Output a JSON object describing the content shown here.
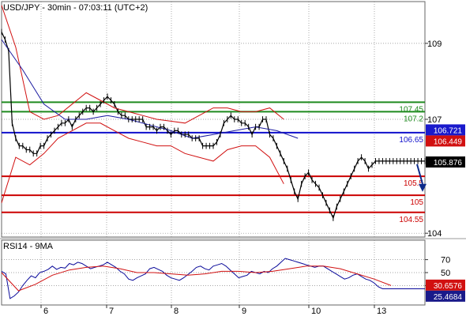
{
  "header": {
    "title": "USD/JPY - 30min - 07:03:11 (UTC+2)"
  },
  "rsi_panel": {
    "title": "RSI14 - 9MA"
  },
  "colors": {
    "price": "#000000",
    "bollinger": "#d11010",
    "moving_average": "#1a1aa0",
    "support": "#cc0000",
    "resistance": "#1f8a1f",
    "pivot": "#1010cc",
    "rsi": "#0a0a9a",
    "rsi_ma": "#d11010",
    "arrow": "#0c2a8a"
  },
  "chart_data": [
    {
      "type": "line",
      "title": "USD/JPY - 30min - 07:03:11 (UTC+2)",
      "x_ticks": [
        "6",
        "7",
        "8",
        "9",
        "10",
        "13"
      ],
      "y_ticks": [
        "109",
        "107",
        "104"
      ],
      "y_range": [
        103.9,
        110.1
      ],
      "grid": true,
      "series": [
        {
          "role": "price",
          "x": [
            0,
            1,
            2,
            3,
            4,
            5,
            6,
            7,
            8,
            9,
            10,
            11,
            12,
            13,
            14,
            15,
            16,
            17,
            18,
            19,
            20,
            21,
            22,
            23,
            24,
            25,
            26,
            27,
            28,
            29,
            30,
            31,
            32,
            33,
            34,
            35,
            36,
            37,
            38,
            39,
            40,
            41,
            42,
            43,
            44,
            45,
            46,
            47,
            48,
            49,
            50,
            51,
            52,
            53,
            54,
            55,
            56,
            57,
            58,
            59,
            60,
            61,
            62,
            63,
            64,
            65,
            66,
            67,
            68,
            69,
            70,
            71,
            72,
            73,
            74,
            75,
            76,
            77,
            78,
            79,
            80,
            81,
            82,
            83,
            84,
            85,
            86,
            87,
            88,
            89,
            90,
            91,
            92,
            93,
            94,
            95,
            96,
            97,
            98,
            99,
            100,
            101,
            102,
            103,
            104,
            105,
            106,
            107,
            108,
            109,
            110,
            111,
            112,
            113,
            114,
            115,
            116,
            117,
            118,
            119,
            120
          ],
          "values": [
            109.3,
            109.1,
            108.8,
            106.9,
            106.5,
            106.3,
            106.3,
            106.2,
            106.2,
            106.1,
            106.1,
            106.3,
            106.3,
            106.5,
            106.6,
            106.7,
            106.8,
            106.9,
            106.9,
            107.0,
            106.8,
            107.0,
            107.1,
            107.2,
            107.3,
            107.3,
            107.2,
            107.3,
            107.4,
            107.5,
            107.6,
            107.5,
            107.4,
            107.2,
            107.1,
            107.1,
            107.0,
            107.0,
            107.0,
            107.0,
            107.0,
            106.8,
            106.8,
            106.8,
            106.7,
            106.8,
            106.8,
            106.7,
            106.6,
            106.7,
            106.7,
            106.6,
            106.6,
            106.6,
            106.5,
            106.5,
            106.5,
            106.3,
            106.3,
            106.3,
            106.3,
            106.4,
            106.6,
            106.9,
            107.0,
            107.1,
            107.0,
            107.0,
            106.9,
            106.9,
            106.8,
            106.6,
            106.8,
            106.8,
            107.0,
            107.0,
            106.6,
            106.5,
            106.3,
            106.1,
            105.9,
            105.7,
            105.4,
            105.1,
            104.9,
            105.3,
            105.5,
            105.6,
            105.4,
            105.3,
            105.2,
            105.0,
            104.8,
            104.6,
            104.4,
            104.7,
            104.9,
            105.1,
            105.3,
            105.5,
            105.7,
            105.9,
            106.0,
            105.9,
            105.7,
            105.8,
            105.9,
            105.9,
            105.9,
            105.9,
            105.9,
            105.9,
            105.9,
            105.9,
            105.9,
            105.9,
            105.9,
            105.9,
            105.9,
            105.9,
            105.9
          ]
        },
        {
          "role": "bollinger_upper",
          "x": [
            0,
            4,
            8,
            12,
            16,
            20,
            24,
            28,
            32,
            36,
            40,
            44,
            48,
            52,
            56,
            60,
            64,
            68,
            72,
            76,
            80
          ],
          "values": [
            110.0,
            108.9,
            107.2,
            107.0,
            107.1,
            107.4,
            107.7,
            107.5,
            107.3,
            107.2,
            107.1,
            107.0,
            106.95,
            106.9,
            107.1,
            107.3,
            107.3,
            107.2,
            107.2,
            107.3,
            107.0
          ]
        },
        {
          "role": "bollinger_lower",
          "x": [
            0,
            4,
            8,
            12,
            16,
            20,
            24,
            28,
            32,
            36,
            40,
            44,
            48,
            52,
            56,
            60,
            64,
            68,
            72,
            76,
            80
          ],
          "values": [
            104.8,
            106.0,
            105.8,
            106.1,
            106.5,
            106.7,
            106.9,
            106.9,
            106.7,
            106.5,
            106.4,
            106.3,
            106.3,
            106.1,
            106.0,
            105.9,
            106.2,
            106.3,
            106.3,
            106.0,
            105.3
          ]
        },
        {
          "role": "moving_average",
          "x": [
            0,
            6,
            12,
            18,
            24,
            30,
            36,
            42,
            48,
            54,
            60,
            66,
            72,
            78,
            84
          ],
          "values": [
            109.1,
            108.3,
            107.4,
            107.0,
            107.0,
            107.1,
            107.0,
            106.85,
            106.7,
            106.5,
            106.6,
            106.7,
            106.8,
            106.7,
            106.5
          ]
        }
      ],
      "levels": [
        {
          "label": "107.45",
          "value": 107.45,
          "kind": "resistance"
        },
        {
          "label": "107.2",
          "value": 107.2,
          "kind": "resistance"
        },
        {
          "label": "106.65",
          "value": 106.65,
          "kind": "pivot"
        },
        {
          "label": "105.5",
          "value": 105.5,
          "kind": "support"
        },
        {
          "label": "105",
          "value": 105.0,
          "kind": "support"
        },
        {
          "label": "104.55",
          "value": 104.55,
          "kind": "support"
        }
      ],
      "price_tags": [
        {
          "label": "106.721",
          "value": 106.721,
          "kind": "pivot"
        },
        {
          "label": "106.449",
          "value": 106.449,
          "kind": "support"
        },
        {
          "label": "105.876",
          "value": 105.876,
          "kind": "price"
        }
      ]
    },
    {
      "type": "line",
      "title": "RSI14 - 9MA",
      "y_ticks": [
        "70",
        "50",
        "30"
      ],
      "y_range": [
        0,
        100
      ],
      "grid": true,
      "series": [
        {
          "role": "rsi",
          "x": [
            0,
            1,
            2,
            3,
            4,
            5,
            6,
            7,
            8,
            9,
            10,
            11,
            12,
            13,
            14,
            15,
            16,
            17,
            18,
            19,
            20,
            21,
            22,
            23,
            24,
            25,
            26,
            27,
            28,
            29,
            30,
            31,
            32,
            33,
            34,
            35,
            36,
            37,
            38,
            39,
            40,
            41,
            42,
            43,
            44,
            45,
            46,
            47,
            48,
            49,
            50,
            51,
            52,
            53,
            54,
            55,
            56,
            57,
            58,
            59,
            60,
            61,
            62,
            63,
            64,
            65,
            66,
            67,
            68,
            69,
            70,
            71,
            72,
            73,
            74,
            75,
            76,
            77,
            78,
            79,
            80,
            81,
            82,
            83,
            84,
            85,
            86,
            87,
            88,
            89,
            90,
            91,
            92,
            93,
            94,
            95,
            96,
            97,
            98,
            99,
            100
          ],
          "values": [
            52,
            48,
            10,
            14,
            20,
            30,
            38,
            45,
            42,
            50,
            52,
            55,
            60,
            55,
            58,
            57,
            64,
            62,
            66,
            64,
            60,
            56,
            58,
            60,
            62,
            66,
            62,
            58,
            52,
            48,
            40,
            38,
            42,
            45,
            48,
            56,
            58,
            55,
            52,
            46,
            42,
            40,
            38,
            42,
            47,
            52,
            58,
            60,
            56,
            54,
            60,
            62,
            64,
            60,
            54,
            48,
            42,
            44,
            46,
            52,
            50,
            48,
            52,
            50,
            56,
            60,
            66,
            72,
            70,
            68,
            66,
            64,
            62,
            60,
            58,
            60,
            60,
            56,
            52,
            48,
            44,
            40,
            42,
            46,
            48,
            44,
            40,
            38,
            34,
            28,
            25,
            25,
            25,
            25,
            25,
            25,
            25,
            25,
            25,
            25,
            25
          ]
        },
        {
          "role": "rsi_ma",
          "x": [
            0,
            4,
            8,
            12,
            16,
            20,
            24,
            28,
            32,
            36,
            40,
            44,
            48,
            52,
            56,
            60,
            64,
            68,
            72,
            76,
            80,
            84,
            88,
            92
          ],
          "values": [
            50,
            22,
            32,
            46,
            54,
            58,
            60,
            56,
            50,
            50,
            48,
            46,
            48,
            52,
            52,
            50,
            52,
            56,
            60,
            60,
            56,
            48,
            40,
            30
          ]
        }
      ],
      "price_tags": [
        {
          "label": "30.6576",
          "value": 30.6576,
          "kind": "rsi_ma"
        },
        {
          "label": "25.4684",
          "value": 25.4684,
          "kind": "rsi"
        }
      ]
    }
  ]
}
